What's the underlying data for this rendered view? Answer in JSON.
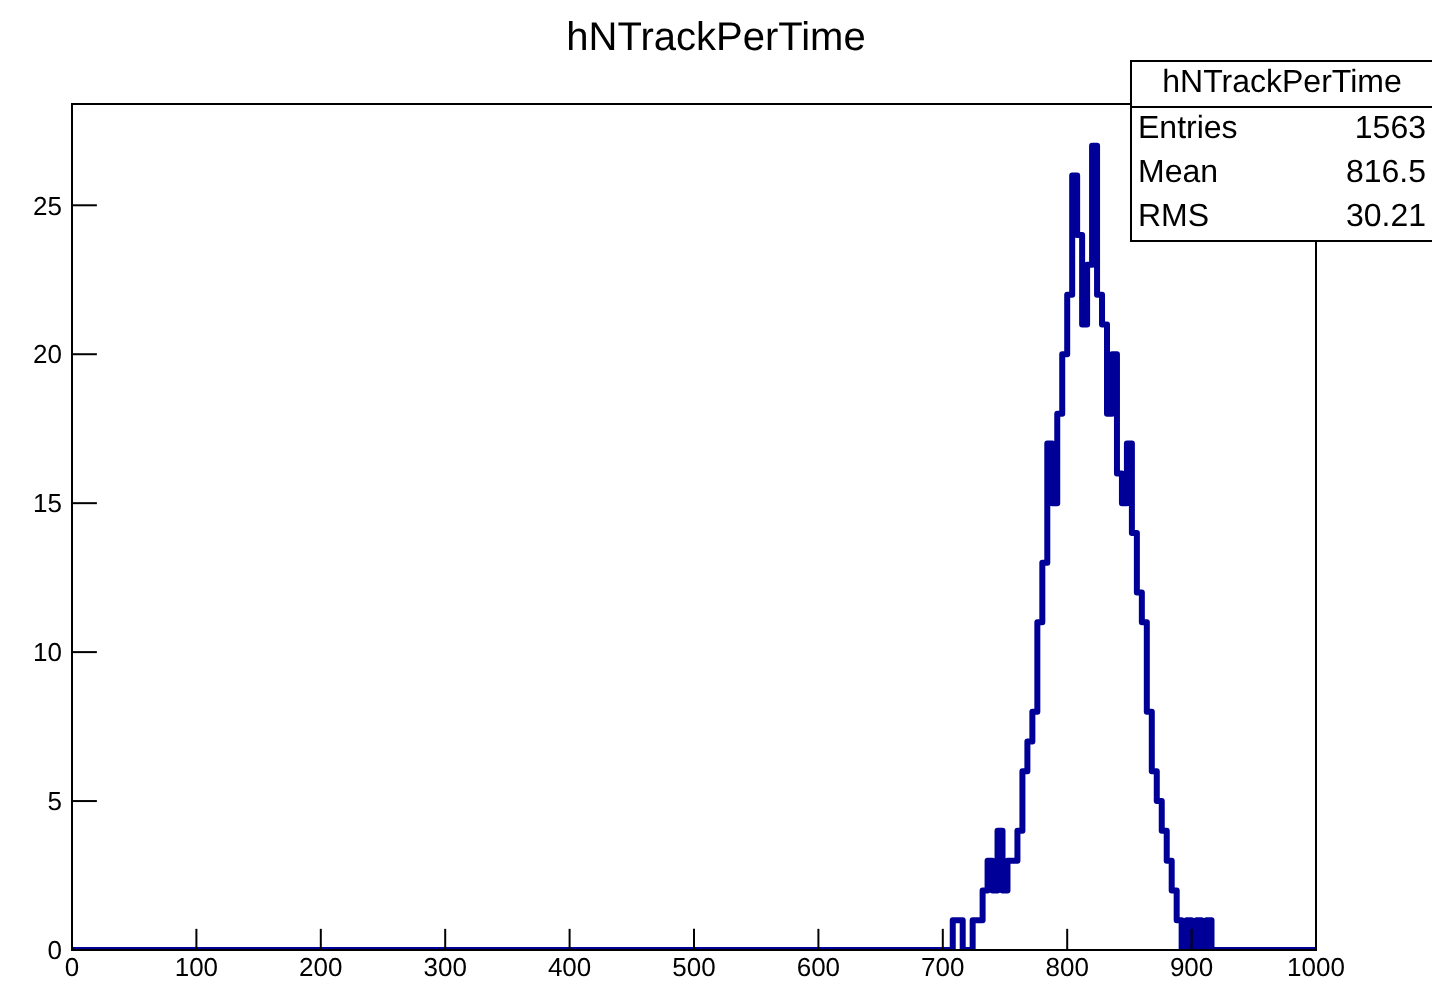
{
  "chart_data": {
    "type": "histogram",
    "title": "hNTrackPerTime",
    "bins": [
      0,
      700,
      704,
      708,
      712,
      716,
      720,
      724,
      728,
      732,
      736,
      740,
      744,
      748,
      752,
      756,
      760,
      764,
      768,
      772,
      776,
      780,
      784,
      788,
      792,
      796,
      800,
      804,
      808,
      812,
      816,
      820,
      824,
      828,
      832,
      836,
      840,
      844,
      848,
      852,
      856,
      860,
      864,
      868,
      872,
      876,
      880,
      884,
      888,
      892,
      896,
      900,
      904,
      908,
      912,
      916,
      920,
      924,
      928,
      932,
      1000
    ],
    "values": [
      0,
      0,
      0,
      1,
      1,
      0,
      0,
      1,
      1,
      2,
      3,
      2,
      4,
      2,
      3,
      3,
      4,
      6,
      7,
      8,
      11,
      13,
      17,
      15,
      18,
      20,
      22,
      26,
      24,
      21,
      23,
      27,
      22,
      21,
      18,
      20,
      16,
      15,
      17,
      14,
      12,
      11,
      8,
      6,
      5,
      4,
      3,
      2,
      1,
      0,
      1,
      0,
      1,
      0,
      1,
      0,
      0,
      0,
      0,
      0
    ],
    "color": "#000099",
    "xlim": [
      0,
      1000
    ],
    "xticks": [
      0,
      100,
      200,
      300,
      400,
      500,
      600,
      700,
      800,
      900,
      1000
    ],
    "ylim": [
      0,
      28.4
    ],
    "yticks": [
      0,
      5,
      10,
      15,
      20,
      25
    ],
    "annotations": [
      "hNTrackPerTime",
      "Entries",
      "1563",
      "Mean",
      "816.5",
      "RMS",
      "30.21"
    ]
  }
}
